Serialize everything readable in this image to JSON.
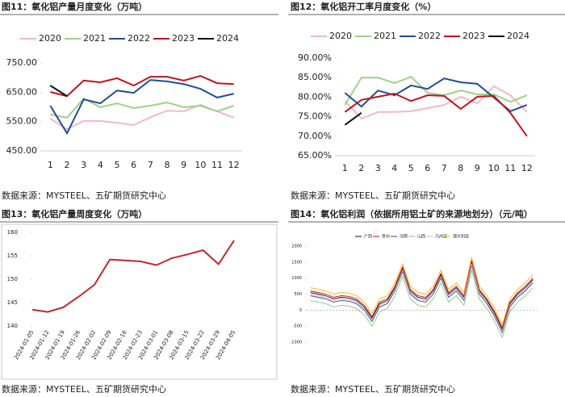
{
  "chart_data": [
    {
      "type": "line",
      "title": "图11：氧化铝产量月度变化（万吨）",
      "source": "数据来源：MYSTEEL、五矿期货研究中心",
      "categories": [
        "1",
        "2",
        "3",
        "4",
        "5",
        "6",
        "7",
        "8",
        "9",
        "10",
        "11",
        "12"
      ],
      "ylim": [
        450,
        750
      ],
      "yticks": [
        {
          "value": 450,
          "label": "450.00"
        },
        {
          "value": 550,
          "label": "550.00"
        },
        {
          "value": 650,
          "label": "650.00"
        },
        {
          "value": 750,
          "label": "750.00"
        }
      ],
      "legend": "top",
      "grid": false,
      "series": [
        {
          "name": "2020",
          "color": "#f4b8c4",
          "values": [
            560,
            524,
            552,
            552,
            546,
            538,
            565,
            587,
            585,
            607,
            585,
            563
          ]
        },
        {
          "name": "2021",
          "color": "#9fd08c",
          "values": [
            574,
            563,
            629,
            599,
            612,
            596,
            604,
            615,
            599,
            604,
            585,
            604
          ]
        },
        {
          "name": "2022",
          "color": "#1f4e96",
          "values": [
            604,
            510,
            626,
            612,
            656,
            648,
            692,
            687,
            678,
            662,
            632,
            645
          ]
        },
        {
          "name": "2023",
          "color": "#c0141c",
          "values": [
            651,
            637,
            690,
            684,
            698,
            673,
            703,
            703,
            690,
            706,
            681,
            678
          ]
        },
        {
          "name": "2024",
          "color": "#111111",
          "values": [
            673,
            637,
            null,
            null,
            null,
            null,
            null,
            null,
            null,
            null,
            null,
            null
          ]
        }
      ]
    },
    {
      "type": "line",
      "title": "图12：氧化铝开工率月度变化（%）",
      "source": "数据来源：MYSTEEL、五矿期货研究中心",
      "categories": [
        "1",
        "2",
        "3",
        "4",
        "5",
        "6",
        "7",
        "8",
        "9",
        "10",
        "11",
        "12"
      ],
      "ylim": [
        65,
        90
      ],
      "yticks": [
        {
          "value": 65,
          "label": "65.00%"
        },
        {
          "value": 70,
          "label": "70.00%"
        },
        {
          "value": 75,
          "label": "75.00%"
        },
        {
          "value": 80,
          "label": "80.00%"
        },
        {
          "value": 85,
          "label": "85.00%"
        },
        {
          "value": 90,
          "label": "90.00%"
        }
      ],
      "legend": "top",
      "grid": false,
      "series": [
        {
          "name": "2020",
          "color": "#f4b8c4",
          "values": [
            79.0,
            74.5,
            76.2,
            76.2,
            76.4,
            77.2,
            78.0,
            80.1,
            78.4,
            82.8,
            80.5,
            76.2
          ]
        },
        {
          "name": "2021",
          "color": "#9fd08c",
          "values": [
            78.0,
            85.0,
            85.0,
            83.6,
            85.2,
            81.1,
            80.5,
            81.7,
            80.7,
            80.7,
            78.8,
            80.5
          ]
        },
        {
          "name": "2022",
          "color": "#1f4e96",
          "values": [
            81.1,
            77.6,
            81.7,
            80.5,
            83.0,
            82.1,
            84.8,
            83.8,
            83.4,
            79.9,
            76.4,
            78.0
          ]
        },
        {
          "name": "2023",
          "color": "#c0141c",
          "values": [
            76.2,
            79.3,
            80.1,
            80.9,
            79.0,
            80.5,
            80.3,
            77.0,
            80.1,
            80.3,
            76.0,
            70.0
          ]
        },
        {
          "name": "2024",
          "color": "#111111",
          "values": [
            72.9,
            76.0,
            null,
            null,
            null,
            null,
            null,
            null,
            null,
            null,
            null,
            null
          ]
        }
      ]
    },
    {
      "type": "line",
      "title": "图13：氧化铝产量周度变化（万吨）",
      "source": "数据来源：MYSTEEL、五矿期货研究中心",
      "categories": [
        "2024-01-05",
        "2024-01-12",
        "2024-01-19",
        "2024-01-26",
        "2024-02-02",
        "2024-02-09",
        "2024-02-16",
        "2024-02-23",
        "2024-03-01",
        "2024-03-08",
        "2024-03-15",
        "2024-03-22",
        "2024-03-29",
        "2024-04-05"
      ],
      "ylim": [
        140,
        160
      ],
      "yticks": [
        140,
        145,
        150,
        155,
        160
      ],
      "grid": false,
      "series": [
        {
          "color": "#c0282c",
          "values": [
            143.5,
            143.0,
            144.0,
            146.3,
            148.8,
            154.2,
            154.0,
            153.8,
            153.0,
            154.5,
            155.3,
            156.2,
            153.2,
            158.3
          ]
        }
      ]
    },
    {
      "type": "line",
      "title": "图14：氧化铝利润（依据所用铝土矿的来源地划分）（元/吨）",
      "source": "数据来源：MYSTEEL、五矿期货研究中心",
      "categories": [
        null,
        null,
        null,
        null,
        null,
        null,
        null,
        null,
        null,
        null,
        null,
        null,
        null,
        null,
        null,
        null,
        null,
        null,
        null,
        null,
        null,
        null,
        null,
        null,
        null,
        null,
        null,
        null,
        null,
        null
      ],
      "ylim": [
        -1000,
        2000
      ],
      "yticks": [
        -1000,
        -500,
        0,
        500,
        1000,
        1500,
        2000
      ],
      "legend": "top",
      "grid": false,
      "series": [
        {
          "name": "广西",
          "color": "#111111",
          "values": [
            550,
            500,
            450,
            350,
            400,
            380,
            300,
            100,
            -250,
            200,
            300,
            700,
            1300,
            600,
            400,
            350,
            600,
            1100,
            500,
            700,
            400,
            1500,
            600,
            300,
            -100,
            -600,
            200,
            500,
            700,
            950
          ]
        },
        {
          "name": "贵州",
          "color": "#c0141c",
          "values": [
            600,
            550,
            500,
            400,
            450,
            430,
            350,
            150,
            -200,
            250,
            350,
            750,
            1350,
            650,
            450,
            400,
            650,
            1150,
            550,
            750,
            450,
            1550,
            650,
            350,
            -50,
            -550,
            250,
            550,
            750,
            1000
          ]
        },
        {
          "name": "河南",
          "color": "#1f4e96",
          "values": [
            450,
            400,
            350,
            250,
            300,
            280,
            200,
            0,
            -350,
            100,
            200,
            600,
            1200,
            500,
            300,
            250,
            500,
            1000,
            400,
            600,
            300,
            1400,
            500,
            200,
            -200,
            -700,
            100,
            400,
            600,
            850
          ]
        },
        {
          "name": "山西",
          "color": "#8cc27a",
          "values": [
            300,
            250,
            200,
            100,
            150,
            130,
            50,
            -150,
            -500,
            -50,
            50,
            450,
            1050,
            350,
            150,
            100,
            350,
            850,
            250,
            450,
            150,
            1250,
            350,
            50,
            -350,
            -850,
            -50,
            250,
            450,
            700
          ]
        },
        {
          "name": "几内亚",
          "color": "#f0a8bc",
          "values": [
            500,
            450,
            400,
            300,
            350,
            330,
            250,
            50,
            -300,
            150,
            250,
            650,
            1250,
            550,
            350,
            300,
            550,
            1050,
            450,
            650,
            350,
            1450,
            550,
            250,
            -150,
            -650,
            150,
            450,
            650,
            900
          ]
        },
        {
          "name": "澳大利亚",
          "color": "#f0b400",
          "values": [
            700,
            650,
            600,
            500,
            550,
            530,
            450,
            250,
            -100,
            350,
            450,
            850,
            1450,
            750,
            550,
            500,
            750,
            1250,
            650,
            850,
            550,
            1650,
            750,
            450,
            50,
            -450,
            350,
            650,
            850,
            1100
          ]
        }
      ]
    }
  ]
}
